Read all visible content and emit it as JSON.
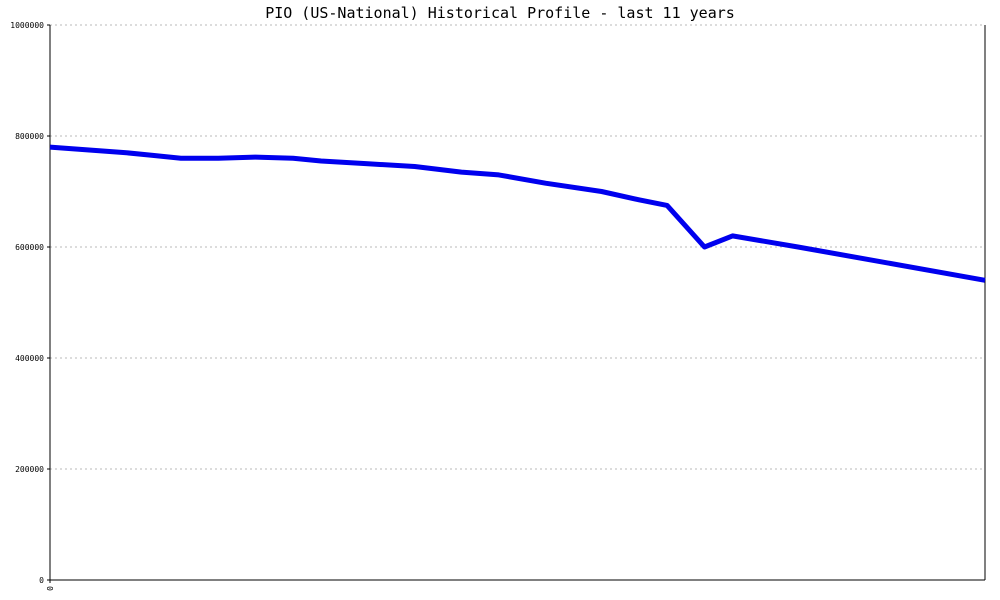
{
  "chart_data": {
    "type": "line",
    "title": "PIO (US-National) Historical Profile - last 11 years",
    "xlabel": "",
    "ylabel": "",
    "ylim": [
      0,
      1000000
    ],
    "y_ticks": [
      "0",
      "200000",
      "400000",
      "600000",
      "800000",
      "1000000"
    ],
    "x_ticks": [
      "0"
    ],
    "grid": true,
    "line_color": "#0000ee",
    "series": [
      {
        "x": [
          0,
          4,
          8,
          11,
          14,
          18,
          22,
          26,
          29,
          34,
          39,
          44,
          48,
          53,
          59,
          63,
          66,
          70,
          73,
          80,
          100
        ],
        "values": [
          780000,
          775000,
          770000,
          765000,
          760000,
          760000,
          762000,
          760000,
          755000,
          750000,
          745000,
          735000,
          730000,
          715000,
          700000,
          685000,
          675000,
          600000,
          620000,
          600000,
          540000
        ]
      }
    ]
  }
}
